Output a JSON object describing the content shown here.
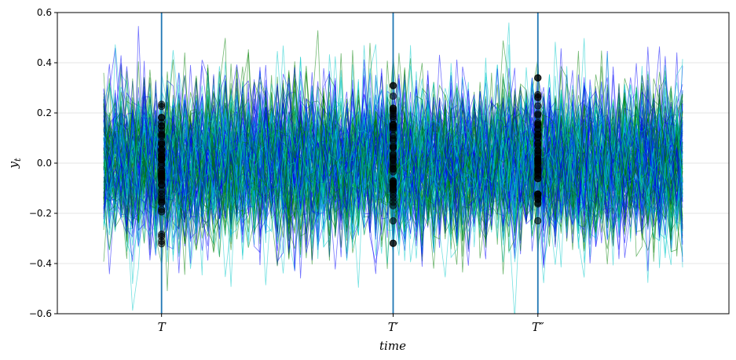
{
  "chart_data": {
    "type": "line",
    "title": "",
    "xlabel": "time",
    "ylabel": "y_t",
    "ylim": [
      -0.6,
      0.6
    ],
    "xlim": [
      -8,
      108
    ],
    "yticks": [
      -0.6,
      -0.4,
      -0.2,
      0.0,
      0.2,
      0.4,
      0.6
    ],
    "ytick_labels": [
      "−0.6",
      "−0.4",
      "−0.2",
      "0.0",
      "0.2",
      "0.4",
      "0.6"
    ],
    "grid": "horizontal",
    "legend": "none",
    "n_series": 150,
    "series_colors": [
      "#0000ff",
      "#008000",
      "#00c8c8"
    ],
    "x_range": [
      0,
      100
    ],
    "noise_std": 0.15,
    "marker_times": [
      {
        "x": 10,
        "label": "T"
      },
      {
        "x": 50,
        "label": "T′"
      },
      {
        "x": 75,
        "label": "T″"
      }
    ],
    "vline_color": "#1f77b4",
    "marker_color": "#000000"
  }
}
